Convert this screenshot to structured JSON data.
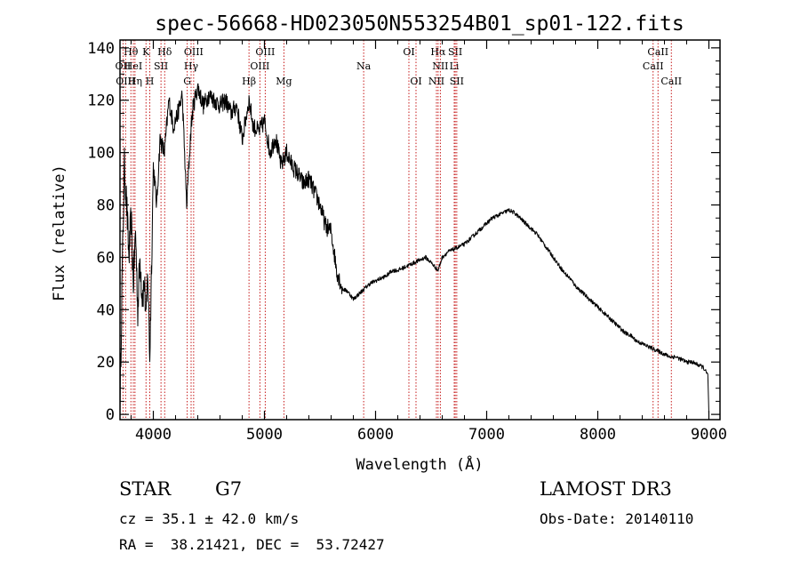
{
  "chart_data": {
    "type": "line",
    "title": "spec-56668-HD023050N553254B01_sp01-122.fits",
    "xlabel": "Wavelength (Å)",
    "ylabel": "Flux (relative)",
    "xlim": [
      3700,
      9100
    ],
    "ylim": [
      -2,
      143
    ],
    "xticks": [
      4000,
      5000,
      6000,
      7000,
      8000,
      9000
    ],
    "yticks": [
      0,
      20,
      40,
      60,
      80,
      100,
      120,
      140
    ],
    "series": [
      {
        "name": "flux",
        "x": [
          3700,
          3720,
          3740,
          3760,
          3780,
          3800,
          3820,
          3840,
          3860,
          3880,
          3900,
          3920,
          3935,
          3950,
          3968,
          3985,
          4000,
          4030,
          4060,
          4100,
          4140,
          4180,
          4220,
          4260,
          4300,
          4340,
          4360,
          4400,
          4450,
          4500,
          4550,
          4600,
          4650,
          4700,
          4750,
          4800,
          4861,
          4900,
          4950,
          5000,
          5050,
          5100,
          5150,
          5200,
          5250,
          5300,
          5350,
          5400,
          5450,
          5500,
          5550,
          5600,
          5650,
          5700,
          5750,
          5800,
          5850,
          5900,
          5950,
          6000,
          6050,
          6100,
          6150,
          6200,
          6250,
          6300,
          6350,
          6400,
          6450,
          6500,
          6563,
          6600,
          6650,
          6700,
          6750,
          6800,
          6850,
          6900,
          6950,
          7000,
          7050,
          7100,
          7150,
          7200,
          7250,
          7300,
          7350,
          7400,
          7450,
          7500,
          7550,
          7600,
          7650,
          7700,
          7750,
          7800,
          7850,
          7900,
          7950,
          8000,
          8050,
          8100,
          8150,
          8200,
          8250,
          8300,
          8350,
          8400,
          8450,
          8500,
          8550,
          8600,
          8650,
          8700,
          8750,
          8800,
          8850,
          8900,
          8950,
          8990,
          9000
        ],
        "y": [
          2,
          55,
          95,
          80,
          60,
          75,
          50,
          70,
          40,
          60,
          45,
          50,
          35,
          55,
          22,
          60,
          95,
          80,
          105,
          100,
          120,
          110,
          115,
          122,
          80,
          110,
          118,
          125,
          118,
          122,
          120,
          118,
          120,
          115,
          118,
          105,
          120,
          110,
          108,
          112,
          100,
          106,
          95,
          100,
          95,
          92,
          88,
          90,
          85,
          80,
          72,
          70,
          55,
          48,
          47,
          44,
          46,
          48,
          50,
          51,
          52,
          53,
          55,
          55,
          56,
          57,
          58,
          59,
          60,
          58,
          55,
          60,
          62,
          63,
          64,
          65,
          67,
          69,
          71,
          73,
          75,
          76,
          77,
          78,
          77,
          75,
          73,
          71,
          69,
          66,
          63,
          60,
          57,
          54,
          52,
          49,
          47,
          45,
          43,
          41,
          39,
          37,
          35,
          33,
          31,
          30,
          28,
          27,
          26,
          25,
          24,
          23,
          22,
          22,
          21,
          20,
          20,
          19,
          18,
          15,
          0
        ]
      }
    ],
    "line_markers": [
      {
        "label": "Hθ",
        "x": 3798,
        "row": 1
      },
      {
        "label": "OII",
        "x": 3727,
        "row": 2
      },
      {
        "label": "HeI",
        "x": 3820,
        "row": 2
      },
      {
        "label": "SII",
        "x": 4069,
        "row": 2
      },
      {
        "label": "OIII",
        "x": 3750,
        "row": 3
      },
      {
        "label": "Hη",
        "x": 3835,
        "row": 3
      },
      {
        "label": "H",
        "x": 3968,
        "row": 3
      },
      {
        "label": "K",
        "x": 3934,
        "row": 1
      },
      {
        "label": "Hδ",
        "x": 4102,
        "row": 1
      },
      {
        "label": "OIII",
        "x": 4363,
        "row": 1
      },
      {
        "label": "Hγ",
        "x": 4340,
        "row": 2
      },
      {
        "label": "G",
        "x": 4305,
        "row": 3
      },
      {
        "label": "OIII",
        "x": 5007,
        "row": 1
      },
      {
        "label": "OIII",
        "x": 4959,
        "row": 2
      },
      {
        "label": "Hβ",
        "x": 4861,
        "row": 3
      },
      {
        "label": "Mg",
        "x": 5175,
        "row": 3
      },
      {
        "label": "Na",
        "x": 5893,
        "row": 2
      },
      {
        "label": "OI",
        "x": 6300,
        "row": 1
      },
      {
        "label": "OI",
        "x": 6364,
        "row": 3
      },
      {
        "label": "Hα",
        "x": 6563,
        "row": 1
      },
      {
        "label": "SII",
        "x": 6717,
        "row": 1
      },
      {
        "label": "NII",
        "x": 6583,
        "row": 2
      },
      {
        "label": "Li",
        "x": 6708,
        "row": 2
      },
      {
        "label": "NII",
        "x": 6548,
        "row": 3
      },
      {
        "label": "SII",
        "x": 6731,
        "row": 3
      },
      {
        "label": "CaII",
        "x": 8542,
        "row": 1
      },
      {
        "label": "CaII",
        "x": 8498,
        "row": 2
      },
      {
        "label": "CaII",
        "x": 8662,
        "row": 3
      }
    ]
  },
  "info": {
    "object_class": "STAR",
    "subclass": "G7",
    "survey": "LAMOST DR3",
    "redshift_text": "cz = 35.1 ± 42.0 km/s",
    "obs_date_text": "Obs-Date: 20140110",
    "coords_text": "RA =  38.21421, DEC =  53.72427"
  },
  "colors": {
    "marker_line": "#c00000",
    "spectrum": "#000000",
    "axes": "#000000"
  }
}
